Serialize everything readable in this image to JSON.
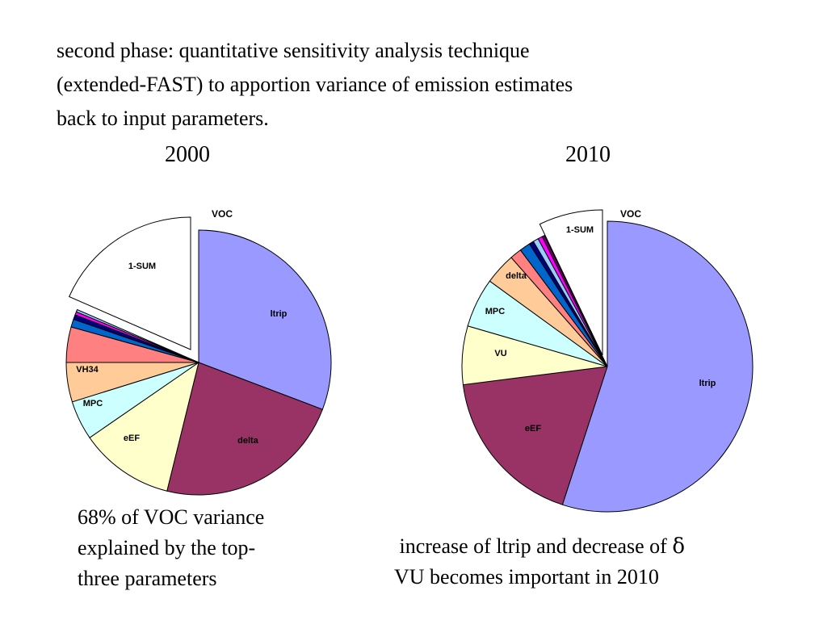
{
  "intro": [
    "second phase: quantitative sensitivity analysis technique",
    "(extended-FAST) to apportion variance of emission estimates",
    "back to input parameters."
  ],
  "note_left": [
    "68% of VOC variance",
    "explained by the top-",
    "three parameters"
  ],
  "note_right": {
    "line1": "increase of ltrip and decrease of",
    "line1_symbol": "δ",
    "line2": "VU becomes important in 2010"
  },
  "chart_data": [
    {
      "type": "pie",
      "title": "2000",
      "subtitle": "VOC",
      "exploded": "1-SUM",
      "slices": [
        {
          "label": "ltrip",
          "value": 32.0,
          "color": "#9999ff"
        },
        {
          "label": "delta",
          "value": 24.0,
          "color": "#993366"
        },
        {
          "label": "eEF",
          "value": 12.0,
          "color": "#ffffcc"
        },
        {
          "label": "MPC",
          "value": 5.0,
          "color": "#ccffff"
        },
        {
          "label": "VH34",
          "value": 5.0,
          "color": "#ffcc99"
        },
        {
          "label": "",
          "value": 4.5,
          "color": "#ff8080"
        },
        {
          "label": "",
          "value": 1.0,
          "color": "#0066cc"
        },
        {
          "label": "",
          "value": 0.6,
          "color": "#000080"
        },
        {
          "label": "",
          "value": 0.4,
          "color": "#ff00ff"
        },
        {
          "label": "",
          "value": 0.3,
          "color": "#99ccff"
        },
        {
          "label": "1-SUM",
          "value": 19.2,
          "color": "#ffffff"
        }
      ]
    },
    {
      "type": "pie",
      "title": "2010",
      "subtitle": "VOC",
      "exploded": "1-SUM",
      "slices": [
        {
          "label": "ltrip",
          "value": 55.0,
          "color": "#9999ff"
        },
        {
          "label": "eEF",
          "value": 18.0,
          "color": "#993366"
        },
        {
          "label": "VU",
          "value": 6.5,
          "color": "#ffffcc"
        },
        {
          "label": "MPC",
          "value": 5.5,
          "color": "#ccffff"
        },
        {
          "label": "delta",
          "value": 3.5,
          "color": "#ffcc99"
        },
        {
          "label": "",
          "value": 1.3,
          "color": "#ff8080"
        },
        {
          "label": "",
          "value": 1.2,
          "color": "#0066cc"
        },
        {
          "label": "",
          "value": 0.5,
          "color": "#000080"
        },
        {
          "label": "",
          "value": 0.6,
          "color": "#99ccff"
        },
        {
          "label": "",
          "value": 0.5,
          "color": "#ff00ff"
        },
        {
          "label": "",
          "value": 0.3,
          "color": "#660066"
        },
        {
          "label": "1-SUM",
          "value": 7.1,
          "color": "#ffffff"
        }
      ]
    }
  ]
}
